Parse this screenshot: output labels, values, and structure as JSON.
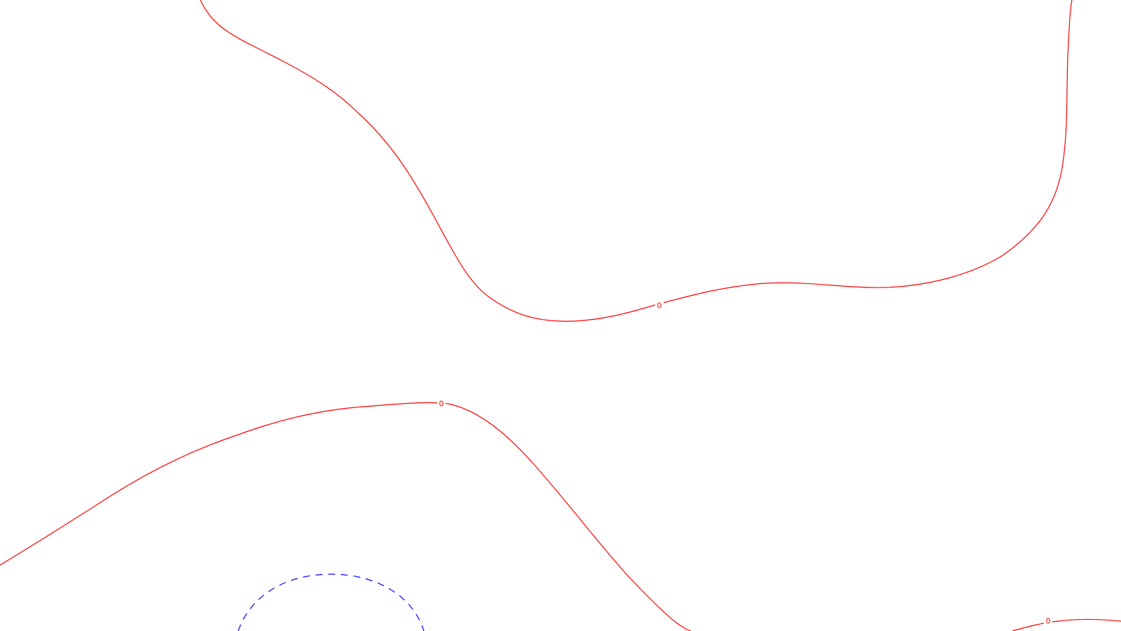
{
  "contours": [
    {
      "id": "contour-upper",
      "level_label": "0",
      "color": "#ff0000",
      "style": "solid"
    },
    {
      "id": "contour-middle",
      "level_label": "0",
      "color": "#ff0000",
      "style": "solid"
    },
    {
      "id": "contour-lower-right",
      "level_label": "0",
      "color": "#ff0000",
      "style": "solid"
    },
    {
      "id": "contour-negative-arc",
      "level_label": "",
      "color": "#0000ff",
      "style": "dashed"
    }
  ],
  "colors": {
    "background": "#ffffff",
    "positive_zero_contour": "#ff0000",
    "negative_contour": "#0000ff"
  }
}
